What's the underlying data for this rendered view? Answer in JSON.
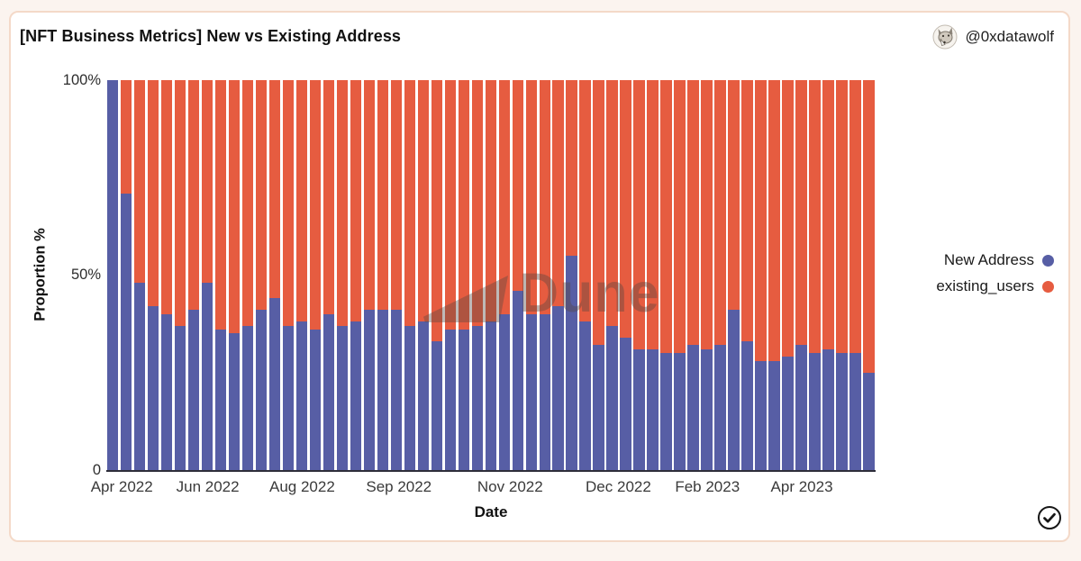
{
  "page": {
    "background": "#FBF4EF",
    "card_border": "#F4D9C8"
  },
  "header": {
    "title": "[NFT Business Metrics] New vs Existing Address",
    "author": "@0xdatawolf"
  },
  "legend": {
    "position": "right",
    "items": [
      {
        "label": "New Address",
        "color": "#575EA5"
      },
      {
        "label": "existing_users",
        "color": "#E65C40"
      }
    ]
  },
  "watermark": {
    "text": "Dune"
  },
  "footer": {
    "verified_icon": "check-circle"
  },
  "chart_data": {
    "type": "bar",
    "stacked_percent": true,
    "title": "[NFT Business Metrics] New vs Existing Address",
    "xlabel": "Date",
    "ylabel": "Proportion %",
    "ylim": [
      0,
      100
    ],
    "grid": false,
    "y_ticks": [
      "100%",
      "50%",
      "0"
    ],
    "bar_count": 57,
    "x_ticks": [
      {
        "label": "Apr 2022",
        "pos_pct": 1.9
      },
      {
        "label": "Jun 2022",
        "pos_pct": 13.1
      },
      {
        "label": "Aug 2022",
        "pos_pct": 25.4
      },
      {
        "label": "Sep 2022",
        "pos_pct": 38.0
      },
      {
        "label": "Nov 2022",
        "pos_pct": 52.5
      },
      {
        "label": "Dec 2022",
        "pos_pct": 66.6
      },
      {
        "label": "Feb 2023",
        "pos_pct": 78.2
      },
      {
        "label": "Apr 2023",
        "pos_pct": 90.5
      }
    ],
    "series": [
      {
        "name": "New Address",
        "color": "#575EA5",
        "values": [
          100,
          71,
          48,
          42,
          40,
          37,
          41,
          48,
          36,
          35,
          37,
          41,
          44,
          37,
          38,
          36,
          40,
          37,
          38,
          41,
          41,
          41,
          37,
          38,
          33,
          36,
          36,
          37,
          38,
          40,
          46,
          40,
          40,
          42,
          55,
          38,
          32,
          37,
          34,
          31,
          31,
          30,
          30,
          32,
          31,
          32,
          41,
          33,
          28,
          28,
          29,
          32,
          30,
          31,
          30,
          30,
          25
        ]
      },
      {
        "name": "existing_users",
        "color": "#E65C40",
        "values": [
          0,
          29,
          52,
          58,
          60,
          63,
          59,
          52,
          64,
          65,
          63,
          59,
          56,
          63,
          62,
          64,
          60,
          63,
          62,
          59,
          59,
          59,
          63,
          62,
          67,
          64,
          64,
          63,
          62,
          60,
          54,
          60,
          60,
          58,
          45,
          62,
          68,
          63,
          66,
          69,
          69,
          70,
          70,
          68,
          69,
          68,
          59,
          67,
          72,
          72,
          71,
          68,
          70,
          69,
          70,
          70,
          75
        ]
      }
    ]
  }
}
